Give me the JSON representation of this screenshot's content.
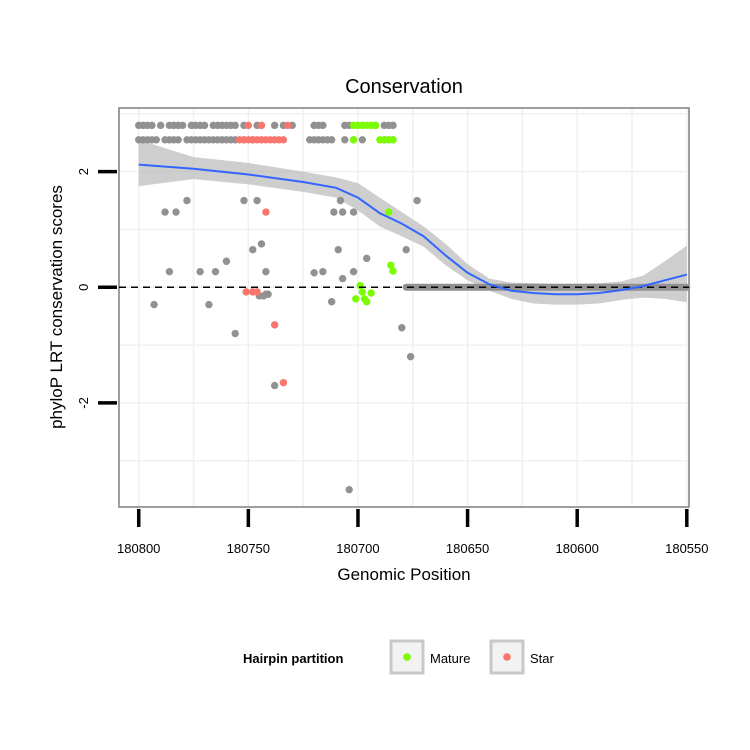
{
  "chart_data": {
    "type": "scatter",
    "title": "Conservation",
    "xlabel": "Genomic Position",
    "ylabel": "phyloP LRT conservation scores",
    "xlim": [
      180809,
      180549
    ],
    "ylim": [
      -3.8,
      3.1
    ],
    "x_reversed": true,
    "x_ticks": [
      180800,
      180750,
      180700,
      180650,
      180600,
      180550
    ],
    "x_tick_labels": [
      "180800",
      "180750",
      "180700",
      "180650",
      "180600",
      "180550"
    ],
    "y_ticks": [
      2,
      0,
      -2
    ],
    "y_tick_labels": [
      "2",
      "0",
      "-2"
    ],
    "y_grid": [
      3,
      2,
      1,
      0,
      -1,
      -2,
      -3
    ],
    "x_grid": [
      180800,
      180775,
      180750,
      180725,
      180700,
      180675,
      180650,
      180625,
      180600,
      180575,
      180550
    ],
    "hline": {
      "y": 0,
      "style": "dashed"
    },
    "colors": {
      "other": "#919191",
      "Mature": "#7cfc00",
      "Star": "#f8766d",
      "smooth_line": "#3366ff",
      "ribbon": "#bdbdbd",
      "panel_border": "#7f7f7f"
    },
    "legend": {
      "title": "Hairpin partition",
      "entries": [
        "Mature",
        "Star"
      ],
      "position": "bottom"
    },
    "series": [
      {
        "name": "other",
        "points": [
          [
            180800,
            2.8
          ],
          [
            180798,
            2.8
          ],
          [
            180796,
            2.8
          ],
          [
            180794,
            2.8
          ],
          [
            180790,
            2.8
          ],
          [
            180786,
            2.8
          ],
          [
            180784,
            2.8
          ],
          [
            180782,
            2.8
          ],
          [
            180780,
            2.8
          ],
          [
            180776,
            2.8
          ],
          [
            180774,
            2.8
          ],
          [
            180772,
            2.8
          ],
          [
            180770,
            2.8
          ],
          [
            180766,
            2.8
          ],
          [
            180764,
            2.8
          ],
          [
            180762,
            2.8
          ],
          [
            180760,
            2.8
          ],
          [
            180758,
            2.8
          ],
          [
            180756,
            2.8
          ],
          [
            180752,
            2.8
          ],
          [
            180746,
            2.8
          ],
          [
            180738,
            2.8
          ],
          [
            180734,
            2.8
          ],
          [
            180730,
            2.8
          ],
          [
            180720,
            2.8
          ],
          [
            180718,
            2.8
          ],
          [
            180716,
            2.8
          ],
          [
            180706,
            2.8
          ],
          [
            180704,
            2.8
          ],
          [
            180692,
            2.8
          ],
          [
            180688,
            2.8
          ],
          [
            180686,
            2.8
          ],
          [
            180684,
            2.8
          ],
          [
            180800,
            2.55
          ],
          [
            180798,
            2.55
          ],
          [
            180796,
            2.55
          ],
          [
            180794,
            2.55
          ],
          [
            180792,
            2.55
          ],
          [
            180788,
            2.55
          ],
          [
            180786,
            2.55
          ],
          [
            180784,
            2.55
          ],
          [
            180782,
            2.55
          ],
          [
            180778,
            2.55
          ],
          [
            180776,
            2.55
          ],
          [
            180774,
            2.55
          ],
          [
            180772,
            2.55
          ],
          [
            180770,
            2.55
          ],
          [
            180768,
            2.55
          ],
          [
            180766,
            2.55
          ],
          [
            180764,
            2.55
          ],
          [
            180762,
            2.55
          ],
          [
            180760,
            2.55
          ],
          [
            180758,
            2.55
          ],
          [
            180756,
            2.55
          ],
          [
            180752,
            2.55
          ],
          [
            180748,
            2.55
          ],
          [
            180722,
            2.55
          ],
          [
            180720,
            2.55
          ],
          [
            180718,
            2.55
          ],
          [
            180716,
            2.55
          ],
          [
            180714,
            2.55
          ],
          [
            180712,
            2.55
          ],
          [
            180706,
            2.55
          ],
          [
            180702,
            2.55
          ],
          [
            180698,
            2.55
          ],
          [
            180688,
            2.55
          ],
          [
            180686,
            2.55
          ],
          [
            180684,
            2.55
          ],
          [
            180793,
            -0.3
          ],
          [
            180788,
            1.3
          ],
          [
            180786,
            0.27
          ],
          [
            180783,
            1.3
          ],
          [
            180778,
            1.5
          ],
          [
            180772,
            0.27
          ],
          [
            180768,
            -0.3
          ],
          [
            180765,
            0.27
          ],
          [
            180760,
            0.45
          ],
          [
            180756,
            -0.8
          ],
          [
            180752,
            1.5
          ],
          [
            180746,
            1.5
          ],
          [
            180748,
            0.65
          ],
          [
            180744,
            0.75
          ],
          [
            180743,
            -0.15
          ],
          [
            180742,
            0.27
          ],
          [
            180745,
            -0.15
          ],
          [
            180741,
            -0.12
          ],
          [
            180742,
            -0.12
          ],
          [
            180738,
            -1.7
          ],
          [
            180720,
            0.25
          ],
          [
            180716,
            0.27
          ],
          [
            180712,
            -0.25
          ],
          [
            180711,
            1.3
          ],
          [
            180709,
            0.65
          ],
          [
            180708,
            1.5
          ],
          [
            180707,
            1.3
          ],
          [
            180707,
            0.15
          ],
          [
            180702,
            0.27
          ],
          [
            180702,
            1.3
          ],
          [
            180704,
            -3.5
          ],
          [
            180696,
            0.5
          ],
          [
            180680,
            -0.7
          ],
          [
            180678,
            0.65
          ],
          [
            180676,
            -1.2
          ],
          [
            180673,
            1.5
          ]
        ]
      },
      {
        "name": "Mature",
        "points": [
          [
            180702,
            2.8
          ],
          [
            180700,
            2.8
          ],
          [
            180698,
            2.8
          ],
          [
            180696,
            2.8
          ],
          [
            180694,
            2.8
          ],
          [
            180692,
            2.8
          ],
          [
            180702,
            2.55
          ],
          [
            180690,
            2.55
          ],
          [
            180688,
            2.55
          ],
          [
            180686,
            2.55
          ],
          [
            180684,
            2.55
          ],
          [
            180686,
            1.3
          ],
          [
            180685,
            0.38
          ],
          [
            180684,
            0.28
          ],
          [
            180701,
            -0.2
          ],
          [
            180699,
            0.03
          ],
          [
            180698,
            -0.08
          ],
          [
            180697,
            -0.2
          ],
          [
            180696,
            -0.25
          ],
          [
            180694,
            -0.1
          ]
        ]
      },
      {
        "name": "Star",
        "points": [
          [
            180750,
            2.8
          ],
          [
            180744,
            2.8
          ],
          [
            180732,
            2.8
          ],
          [
            180754,
            2.55
          ],
          [
            180752,
            2.55
          ],
          [
            180750,
            2.55
          ],
          [
            180748,
            2.55
          ],
          [
            180746,
            2.55
          ],
          [
            180744,
            2.55
          ],
          [
            180742,
            2.55
          ],
          [
            180740,
            2.55
          ],
          [
            180738,
            2.55
          ],
          [
            180736,
            2.55
          ],
          [
            180734,
            2.55
          ],
          [
            180742,
            1.3
          ],
          [
            180738,
            -0.65
          ],
          [
            180734,
            -1.65
          ],
          [
            180751,
            -0.08
          ],
          [
            180748,
            -0.08
          ],
          [
            180746,
            -0.08
          ]
        ]
      }
    ],
    "zero_bar": {
      "x_from": 180678,
      "x_to": 180550,
      "y": 0
    },
    "smooth": [
      [
        180800,
        2.12
      ],
      [
        180775,
        2.05
      ],
      [
        180750,
        1.95
      ],
      [
        180725,
        1.82
      ],
      [
        180710,
        1.72
      ],
      [
        180700,
        1.55
      ],
      [
        180690,
        1.28
      ],
      [
        180680,
        1.1
      ],
      [
        180670,
        0.88
      ],
      [
        180660,
        0.55
      ],
      [
        180650,
        0.25
      ],
      [
        180640,
        0.05
      ],
      [
        180630,
        -0.06
      ],
      [
        180620,
        -0.1
      ],
      [
        180610,
        -0.12
      ],
      [
        180600,
        -0.12
      ],
      [
        180590,
        -0.1
      ],
      [
        180580,
        -0.05
      ],
      [
        180570,
        0.02
      ],
      [
        180560,
        0.12
      ],
      [
        180550,
        0.22
      ]
    ],
    "ribbon_upper": [
      [
        180800,
        2.55
      ],
      [
        180775,
        2.25
      ],
      [
        180750,
        2.15
      ],
      [
        180725,
        2.0
      ],
      [
        180710,
        1.9
      ],
      [
        180700,
        1.8
      ],
      [
        180690,
        1.55
      ],
      [
        180680,
        1.3
      ],
      [
        180670,
        1.05
      ],
      [
        180660,
        0.75
      ],
      [
        180650,
        0.4
      ],
      [
        180640,
        0.15
      ],
      [
        180630,
        0.08
      ],
      [
        180620,
        0.07
      ],
      [
        180610,
        0.06
      ],
      [
        180600,
        0.06
      ],
      [
        180590,
        0.07
      ],
      [
        180580,
        0.1
      ],
      [
        180570,
        0.2
      ],
      [
        180560,
        0.45
      ],
      [
        180550,
        0.72
      ]
    ],
    "ribbon_lower": [
      [
        180800,
        1.75
      ],
      [
        180775,
        1.87
      ],
      [
        180750,
        1.78
      ],
      [
        180725,
        1.65
      ],
      [
        180710,
        1.55
      ],
      [
        180700,
        1.33
      ],
      [
        180690,
        1.05
      ],
      [
        180680,
        0.88
      ],
      [
        180670,
        0.7
      ],
      [
        180660,
        0.38
      ],
      [
        180650,
        0.12
      ],
      [
        180640,
        -0.06
      ],
      [
        180630,
        -0.2
      ],
      [
        180620,
        -0.28
      ],
      [
        180610,
        -0.3
      ],
      [
        180600,
        -0.3
      ],
      [
        180590,
        -0.28
      ],
      [
        180580,
        -0.22
      ],
      [
        180570,
        -0.18
      ],
      [
        180560,
        -0.2
      ],
      [
        180550,
        -0.26
      ]
    ]
  }
}
